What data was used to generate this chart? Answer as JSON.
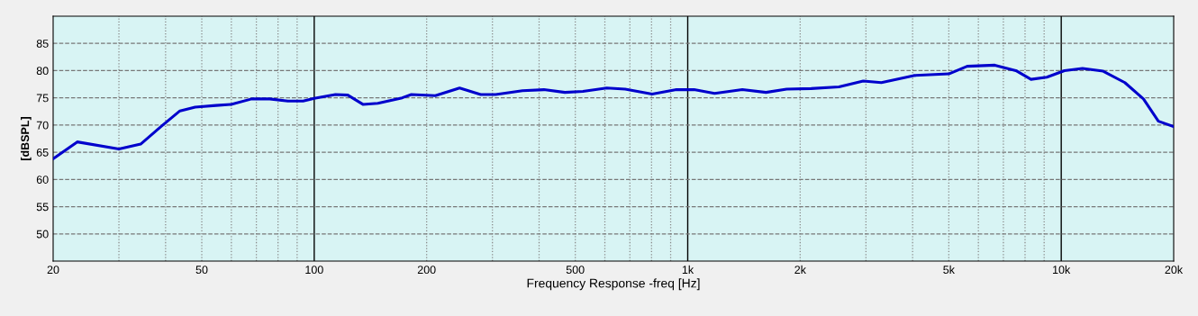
{
  "chart_data": {
    "type": "line",
    "xlabel": "Frequency Response -freq [Hz]",
    "ylabel": "[dBSPL]",
    "log": "x",
    "grid": true,
    "line_style": "solid",
    "marker": "none",
    "xlim": [
      20,
      20000
    ],
    "ylim": [
      45,
      90
    ],
    "xticks": [
      {
        "value": 20,
        "label": "20"
      },
      {
        "value": 30,
        "label": null
      },
      {
        "value": 40,
        "label": null
      },
      {
        "value": 50,
        "label": "50"
      },
      {
        "value": 60,
        "label": null
      },
      {
        "value": 70,
        "label": null
      },
      {
        "value": 80,
        "label": null
      },
      {
        "value": 90,
        "label": null
      },
      {
        "value": 100,
        "label": "100"
      },
      {
        "value": 200,
        "label": "200"
      },
      {
        "value": 300,
        "label": null
      },
      {
        "value": 400,
        "label": null
      },
      {
        "value": 500,
        "label": "500"
      },
      {
        "value": 600,
        "label": null
      },
      {
        "value": 700,
        "label": null
      },
      {
        "value": 800,
        "label": null
      },
      {
        "value": 900,
        "label": null
      },
      {
        "value": 1000,
        "label": "1k"
      },
      {
        "value": 2000,
        "label": "2k"
      },
      {
        "value": 3000,
        "label": null
      },
      {
        "value": 4000,
        "label": null
      },
      {
        "value": 5000,
        "label": "5k"
      },
      {
        "value": 6000,
        "label": null
      },
      {
        "value": 7000,
        "label": null
      },
      {
        "value": 8000,
        "label": null
      },
      {
        "value": 9000,
        "label": null
      },
      {
        "value": 10000,
        "label": "10k"
      },
      {
        "value": 20000,
        "label": "20k"
      }
    ],
    "yticks": [
      50,
      55,
      60,
      65,
      70,
      75,
      80,
      85
    ],
    "series": [
      {
        "color": "#0000cc",
        "x": [
          20,
          23.2,
          30,
          34.3,
          39,
          43.7,
          48,
          54.6,
          59.9,
          68,
          76,
          85,
          93.4,
          100,
          114,
          123,
          135,
          148,
          172,
          182,
          211,
          245,
          279,
          306,
          361,
          412,
          469,
          524,
          607,
          680,
          803,
          933,
          1040,
          1180,
          1400,
          1620,
          1840,
          2140,
          2540,
          2950,
          3300,
          4030,
          5000,
          5600,
          6640,
          7560,
          8300,
          9150,
          10200,
          11400,
          12950,
          14800,
          16600,
          18200,
          20000
        ],
        "values": [
          63.8,
          66.9,
          65.6,
          66.5,
          69.8,
          72.6,
          73.3,
          73.6,
          73.8,
          74.8,
          74.8,
          74.4,
          74.4,
          74.9,
          75.6,
          75.5,
          73.8,
          74.0,
          75.0,
          75.6,
          75.4,
          76.8,
          75.6,
          75.6,
          76.3,
          76.5,
          76.0,
          76.2,
          76.8,
          76.6,
          75.7,
          76.5,
          76.5,
          75.8,
          76.5,
          76.0,
          76.6,
          76.7,
          77.0,
          78.1,
          77.8,
          79.1,
          79.4,
          80.8,
          81.0,
          80.0,
          78.4,
          78.8,
          80.0,
          80.4,
          79.9,
          77.8,
          74.8,
          70.7,
          69.7
        ]
      }
    ]
  }
}
